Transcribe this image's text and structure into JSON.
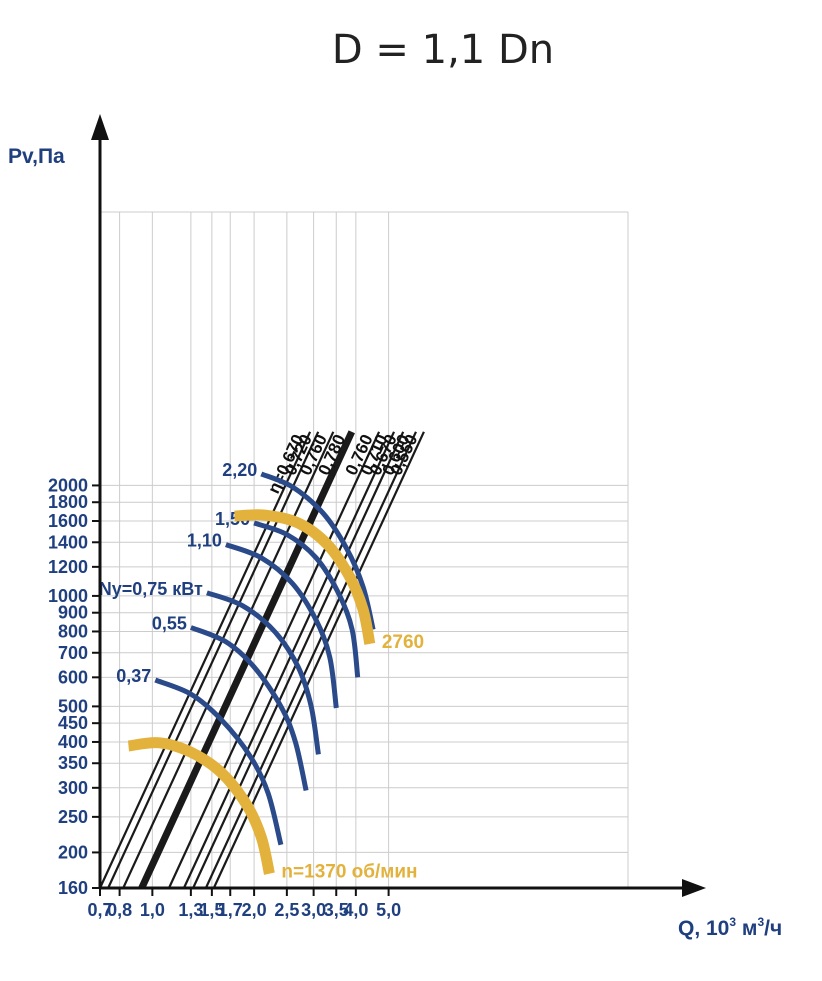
{
  "chart_data": {
    "type": "line",
    "title": "D = 1,1 Dn",
    "xlabel_main": "Q, 10",
    "xlabel_exp": "3",
    "xlabel_unit_main": " м",
    "xlabel_unit_exp": "3",
    "xlabel_unit_tail": "/ч",
    "ylabel": "Pv,Па",
    "x_scale": "log",
    "y_scale": "log",
    "xlim": [
      0.7,
      7.0
    ],
    "ylim": [
      160,
      3000
    ],
    "grid": true,
    "x_ticks": [
      {
        "value": 0.7,
        "label": "0,7"
      },
      {
        "value": 0.8,
        "label": "0,8"
      },
      {
        "value": 1.0,
        "label": "1,0"
      },
      {
        "value": 1.3,
        "label": "1,3"
      },
      {
        "value": 1.5,
        "label": "1,5"
      },
      {
        "value": 1.7,
        "label": "1,7"
      },
      {
        "value": 2.0,
        "label": "2,0"
      },
      {
        "value": 2.5,
        "label": "2,5"
      },
      {
        "value": 3.0,
        "label": "3,0"
      },
      {
        "value": 3.5,
        "label": "3,5"
      },
      {
        "value": 4.0,
        "label": "4,0"
      },
      {
        "value": 5.0,
        "label": "5,0"
      }
    ],
    "y_ticks": [
      {
        "value": 160,
        "label": "160"
      },
      {
        "value": 200,
        "label": "200"
      },
      {
        "value": 250,
        "label": "250"
      },
      {
        "value": 300,
        "label": "300"
      },
      {
        "value": 350,
        "label": "350"
      },
      {
        "value": 400,
        "label": "400"
      },
      {
        "value": 450,
        "label": "450"
      },
      {
        "value": 500,
        "label": "500"
      },
      {
        "value": 600,
        "label": "600"
      },
      {
        "value": 700,
        "label": "700"
      },
      {
        "value": 800,
        "label": "800"
      },
      {
        "value": 900,
        "label": "900"
      },
      {
        "value": 1000,
        "label": "1000"
      },
      {
        "value": 1200,
        "label": "1200"
      },
      {
        "value": 1400,
        "label": "1400"
      },
      {
        "value": 1600,
        "label": "1600"
      },
      {
        "value": 1800,
        "label": "1800"
      },
      {
        "value": 2000,
        "label": "2000"
      }
    ],
    "efficiency_lines": [
      {
        "label": "η=0,670",
        "q_at_160": 0.7,
        "bold": false
      },
      {
        "label": "0,720",
        "q_at_160": 0.74,
        "bold": false
      },
      {
        "label": "0,760",
        "q_at_160": 0.82,
        "bold": false
      },
      {
        "label": "0,780",
        "q_at_160": 0.93,
        "bold": true
      },
      {
        "label": "0,760",
        "q_at_160": 1.12,
        "bold": false
      },
      {
        "label": "0,710",
        "q_at_160": 1.24,
        "bold": false
      },
      {
        "label": "0,670",
        "q_at_160": 1.32,
        "bold": false
      },
      {
        "label": "0,600",
        "q_at_160": 1.44,
        "bold": false
      },
      {
        "label": "0,550",
        "q_at_160": 1.52,
        "bold": false
      }
    ],
    "efficiency_slope": 2.0,
    "efficiency_q_top": 2800,
    "power_curves": [
      {
        "label": "0,37",
        "points": [
          [
            1.02,
            590
          ],
          [
            1.3,
            540
          ],
          [
            1.6,
            460
          ],
          [
            1.95,
            365
          ],
          [
            2.2,
            290
          ],
          [
            2.4,
            210
          ]
        ]
      },
      {
        "label": "0,55",
        "points": [
          [
            1.3,
            820
          ],
          [
            1.65,
            750
          ],
          [
            2.0,
            640
          ],
          [
            2.4,
            500
          ],
          [
            2.65,
            400
          ],
          [
            2.85,
            295
          ]
        ]
      },
      {
        "label": "Ny=0,75 кВт",
        "points": [
          [
            1.45,
            1020
          ],
          [
            1.85,
            940
          ],
          [
            2.3,
            800
          ],
          [
            2.7,
            640
          ],
          [
            2.95,
            500
          ],
          [
            3.1,
            370
          ]
        ]
      },
      {
        "label": "1,10",
        "points": [
          [
            1.65,
            1380
          ],
          [
            2.1,
            1270
          ],
          [
            2.6,
            1080
          ],
          [
            3.05,
            860
          ],
          [
            3.35,
            680
          ],
          [
            3.5,
            495
          ]
        ]
      },
      {
        "label": "1,50",
        "points": [
          [
            2.0,
            1580
          ],
          [
            2.5,
            1470
          ],
          [
            3.05,
            1270
          ],
          [
            3.55,
            1020
          ],
          [
            3.9,
            810
          ],
          [
            4.05,
            600
          ]
        ]
      },
      {
        "label": "2,20",
        "points": [
          [
            2.1,
            2150
          ],
          [
            2.6,
            1980
          ],
          [
            3.2,
            1680
          ],
          [
            3.75,
            1350
          ],
          [
            4.2,
            1060
          ],
          [
            4.5,
            810
          ]
        ]
      }
    ],
    "speed_curves": [
      {
        "label": "n=1370 об/мин",
        "points": [
          [
            0.85,
            390
          ],
          [
            1.05,
            398
          ],
          [
            1.3,
            375
          ],
          [
            1.6,
            330
          ],
          [
            1.9,
            270
          ],
          [
            2.1,
            220
          ],
          [
            2.22,
            175
          ]
        ]
      },
      {
        "label": "2760",
        "points": [
          [
            1.75,
            1650
          ],
          [
            2.15,
            1660
          ],
          [
            2.7,
            1580
          ],
          [
            3.3,
            1380
          ],
          [
            3.85,
            1120
          ],
          [
            4.2,
            920
          ],
          [
            4.4,
            740
          ]
        ]
      }
    ],
    "colors": {
      "grid": "#cccccc",
      "axis": "#111111",
      "efficiency": "#1a1a1a",
      "power": "#2a4a8a",
      "speed": "#e3b23c",
      "text": "#1f3f7f"
    }
  }
}
